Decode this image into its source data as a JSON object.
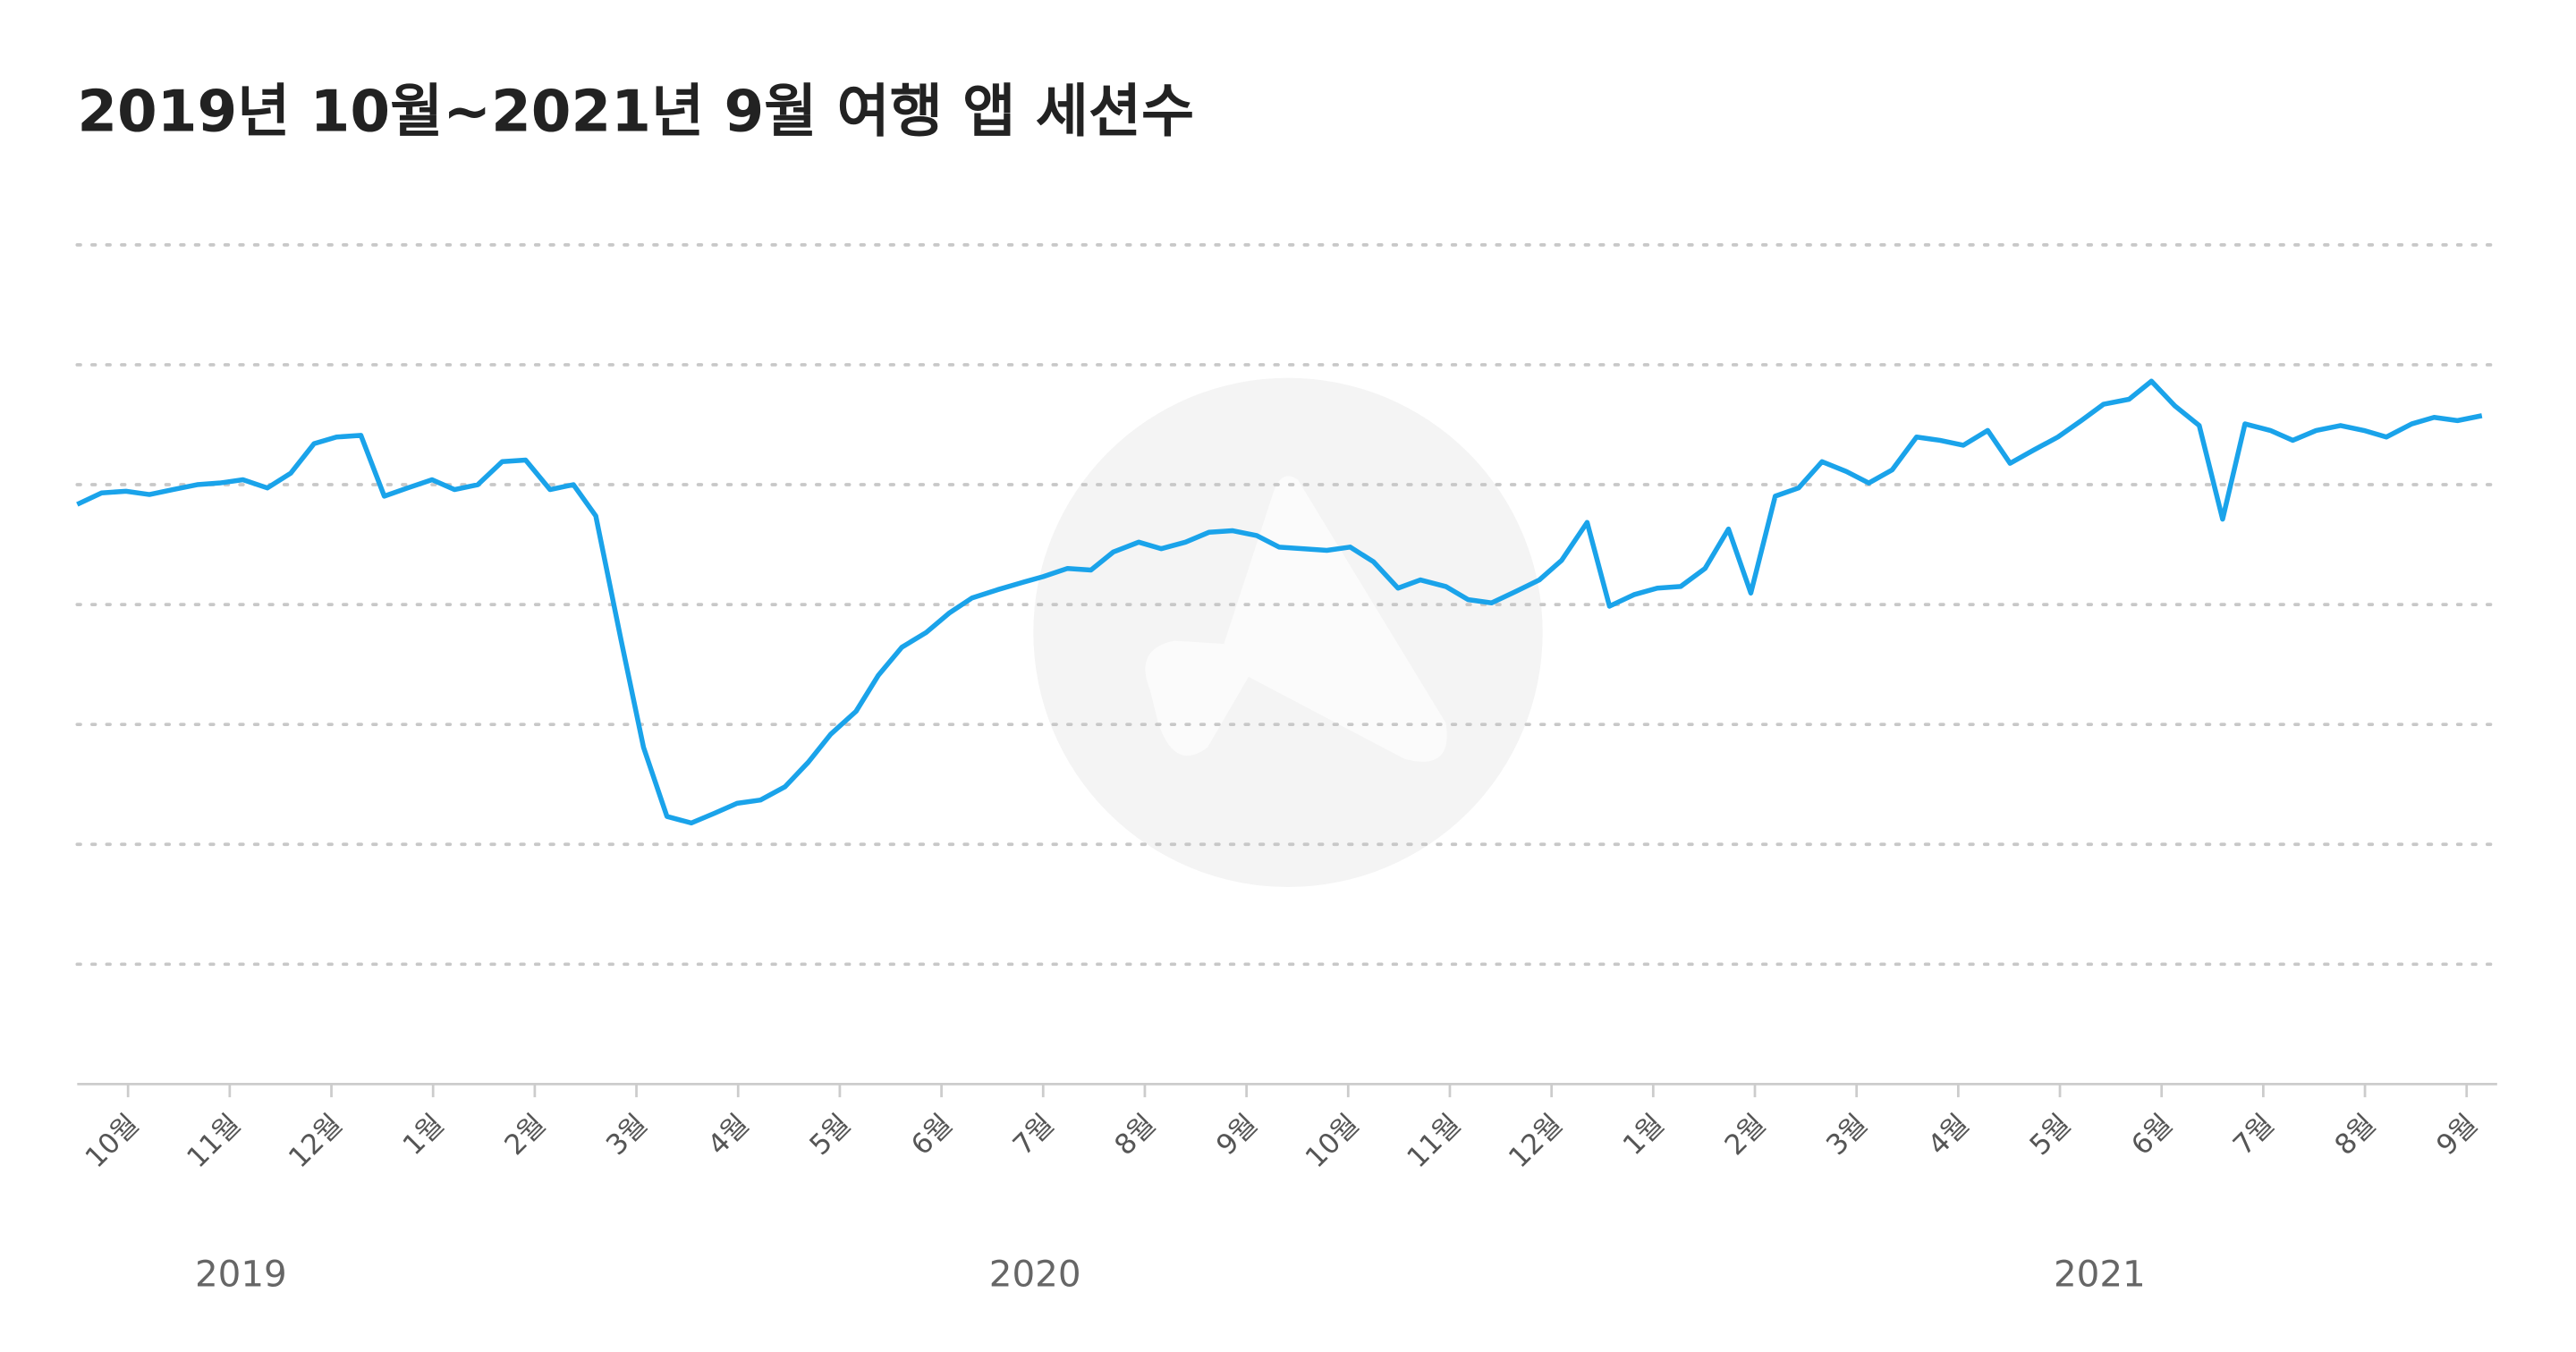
{
  "chart_data": {
    "type": "line",
    "title": "2019년 10월~2021년 9월 여행 앱 세션수",
    "x": [
      -0.5,
      -0.26,
      -0.02,
      0.21,
      0.44,
      0.68,
      0.9,
      1.13,
      1.37,
      1.6,
      1.83,
      2.05,
      2.29,
      2.52,
      2.75,
      2.99,
      3.21,
      3.44,
      3.68,
      3.91,
      4.15,
      4.38,
      4.6,
      4.85,
      5.07,
      5.3,
      5.54,
      5.77,
      5.99,
      6.22,
      6.46,
      6.69,
      6.91,
      7.16,
      7.38,
      7.61,
      7.85,
      8.08,
      8.3,
      8.55,
      8.77,
      9.0,
      9.24,
      9.47,
      9.69,
      9.94,
      10.16,
      10.4,
      10.63,
      10.86,
      11.1,
      11.32,
      11.55,
      11.79,
      12.02,
      12.25,
      12.49,
      12.71,
      12.96,
      13.18,
      13.41,
      13.65,
      13.88,
      14.1,
      14.35,
      14.57,
      14.81,
      15.04,
      15.27,
      15.51,
      15.74,
      15.96,
      16.2,
      16.43,
      16.66,
      16.9,
      17.12,
      17.35,
      17.59,
      17.82,
      18.05,
      18.29,
      18.51,
      18.74,
      18.98,
      19.21,
      19.43,
      19.68,
      19.9,
      20.13,
      20.37,
      20.6,
      20.82,
      21.07,
      21.29,
      21.52,
      21.76,
      21.99,
      22.21,
      22.46,
      22.68,
      22.91,
      23.15
    ],
    "series": [
      {
        "color": "#1aa3ea",
        "values": [
          353,
          360,
          361,
          359,
          362,
          365,
          366,
          368,
          363,
          372,
          390,
          394,
          395,
          358,
          363,
          368,
          362,
          365,
          379,
          380,
          362,
          365,
          346,
          270,
          205,
          163,
          159,
          165,
          171,
          173,
          181,
          196,
          213,
          227,
          249,
          266,
          275,
          287,
          296,
          301,
          305,
          309,
          314,
          313,
          324,
          330,
          326,
          330,
          336,
          337,
          334,
          327,
          326,
          325,
          327,
          318,
          302,
          307,
          303,
          295,
          293,
          300,
          307,
          319,
          342,
          291,
          298,
          302,
          303,
          314,
          338,
          299,
          358,
          363,
          379,
          373,
          366,
          374,
          394,
          392,
          389,
          398,
          378,
          386,
          394,
          404,
          414,
          417,
          428,
          413,
          401,
          344,
          402,
          398,
          392,
          398,
          401,
          398,
          394,
          402,
          406,
          404,
          407
        ]
      }
    ],
    "xlim": [
      -0.5,
      23.3
    ],
    "xticks": [
      {
        "value": 0,
        "label": "10월"
      },
      {
        "value": 1,
        "label": "11월"
      },
      {
        "value": 2,
        "label": "12월"
      },
      {
        "value": 3,
        "label": "1월"
      },
      {
        "value": 4,
        "label": "2월"
      },
      {
        "value": 5,
        "label": "3월"
      },
      {
        "value": 6,
        "label": "4월"
      },
      {
        "value": 7,
        "label": "5월"
      },
      {
        "value": 8,
        "label": "6월"
      },
      {
        "value": 9,
        "label": "7월"
      },
      {
        "value": 10,
        "label": "8월"
      },
      {
        "value": 11,
        "label": "9월"
      },
      {
        "value": 12,
        "label": "10월"
      },
      {
        "value": 13,
        "label": "11월"
      },
      {
        "value": 14,
        "label": "12월"
      },
      {
        "value": 15,
        "label": "1월"
      },
      {
        "value": 16,
        "label": "2월"
      },
      {
        "value": 17,
        "label": "3월"
      },
      {
        "value": 18,
        "label": "4월"
      },
      {
        "value": 19,
        "label": "5월"
      },
      {
        "value": 20,
        "label": "6월"
      },
      {
        "value": 21,
        "label": "7월"
      },
      {
        "value": 22,
        "label": "8월"
      },
      {
        "value": 23,
        "label": "9월"
      }
    ],
    "year_labels": [
      {
        "value": 1.11,
        "label": "2019"
      },
      {
        "value": 8.92,
        "label": "2020"
      },
      {
        "value": 19.39,
        "label": "2021"
      }
    ],
    "ylim": [
      0,
      511
    ],
    "yticks": [
      0,
      73,
      146,
      219,
      292,
      365,
      438,
      511
    ],
    "grid": true
  }
}
